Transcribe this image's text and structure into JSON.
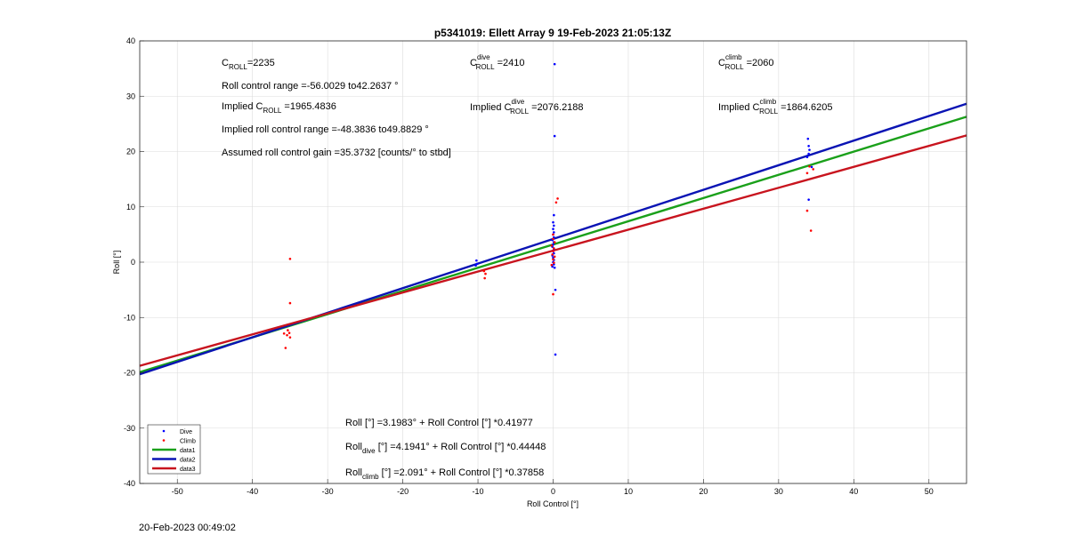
{
  "chart_data": {
    "type": "scatter",
    "title": "p5341019: Ellett Array 9 19-Feb-2023 21:05:13Z",
    "xlabel": "Roll Control [°]",
    "ylabel": "Roll [°]",
    "xlim": [
      -55,
      55
    ],
    "ylim": [
      -40,
      40
    ],
    "xticks": [
      "-50",
      "-40",
      "-30",
      "-20",
      "-10",
      "0",
      "10",
      "20",
      "30",
      "40",
      "50"
    ],
    "yticks": [
      "-40",
      "-30",
      "-20",
      "-10",
      "0",
      "10",
      "20",
      "30",
      "40"
    ],
    "grid": true,
    "legend_position": "bottom-left",
    "legend": [
      {
        "label": "Dive",
        "kind": "marker",
        "color": "#0000ff"
      },
      {
        "label": "Climb",
        "kind": "marker",
        "color": "#ff0000"
      },
      {
        "label": "data1",
        "kind": "line",
        "color": "#1aa01a"
      },
      {
        "label": "data2",
        "kind": "line",
        "color": "#0a14b4"
      },
      {
        "label": "data3",
        "kind": "line",
        "color": "#c8141e"
      }
    ],
    "lines": [
      {
        "name": "data1",
        "intercept": 3.1983,
        "slope": 0.41977,
        "color": "#1aa01a"
      },
      {
        "name": "data2",
        "intercept": 4.1941,
        "slope": 0.44448,
        "color": "#0a14b4"
      },
      {
        "name": "data3",
        "intercept": 2.091,
        "slope": 0.37858,
        "color": "#c8141e"
      }
    ],
    "series": [
      {
        "name": "Dive",
        "color": "#0000ff",
        "points": [
          [
            0.2,
            35.8
          ],
          [
            0.2,
            22.8
          ],
          [
            0.1,
            8.5
          ],
          [
            0.0,
            7.2
          ],
          [
            0.1,
            6.6
          ],
          [
            0.0,
            6.0
          ],
          [
            0.1,
            5.4
          ],
          [
            0.0,
            5.0
          ],
          [
            0.1,
            4.5
          ],
          [
            -0.1,
            4.0
          ],
          [
            0.1,
            3.6
          ],
          [
            0.0,
            3.2
          ],
          [
            -0.1,
            2.8
          ],
          [
            0.1,
            2.4
          ],
          [
            0.0,
            2.0
          ],
          [
            0.1,
            1.6
          ],
          [
            -0.1,
            1.2
          ],
          [
            0.0,
            0.8
          ],
          [
            0.1,
            0.4
          ],
          [
            0.0,
            0.0
          ],
          [
            0.1,
            -0.4
          ],
          [
            -0.1,
            -0.8
          ],
          [
            0.2,
            -1.0
          ],
          [
            0.3,
            -5.0
          ],
          [
            0.3,
            -16.7
          ],
          [
            -10.2,
            0.3
          ],
          [
            -10.1,
            -0.3
          ],
          [
            -10.3,
            -0.6
          ],
          [
            33.9,
            22.3
          ],
          [
            34.0,
            21.0
          ],
          [
            34.1,
            20.3
          ],
          [
            34.0,
            19.6
          ],
          [
            33.8,
            19.0
          ],
          [
            34.0,
            11.3
          ],
          [
            34.4,
            17.2
          ]
        ]
      },
      {
        "name": "Climb",
        "color": "#ff0000",
        "points": [
          [
            -35.0,
            0.6
          ],
          [
            -35.0,
            -7.4
          ],
          [
            -35.3,
            -12.3
          ],
          [
            -35.1,
            -12.8
          ],
          [
            -35.4,
            -13.2
          ],
          [
            -35.0,
            -13.6
          ],
          [
            -35.6,
            -15.5
          ],
          [
            -35.8,
            -12.9
          ],
          [
            -9.0,
            -2.1
          ],
          [
            -9.1,
            -2.9
          ],
          [
            -9.2,
            -1.6
          ],
          [
            0.6,
            11.5
          ],
          [
            0.4,
            10.8
          ],
          [
            0.0,
            4.2
          ],
          [
            0.2,
            3.6
          ],
          [
            -0.2,
            3.0
          ],
          [
            0.1,
            2.5
          ],
          [
            0.0,
            2.0
          ],
          [
            -0.1,
            1.4
          ],
          [
            0.2,
            1.0
          ],
          [
            0.0,
            0.5
          ],
          [
            0.1,
            -0.1
          ],
          [
            -0.2,
            -0.5
          ],
          [
            0.0,
            5.0
          ],
          [
            0.0,
            -5.8
          ],
          [
            33.8,
            16.1
          ],
          [
            33.8,
            9.3
          ],
          [
            34.3,
            5.7
          ],
          [
            34.6,
            16.8
          ],
          [
            34.1,
            17.3
          ]
        ]
      }
    ],
    "annotations": {
      "c_roll": {
        "base": "C",
        "sub": "ROLL",
        "value": "=2235"
      },
      "range": "Roll control range =-56.0029 to42.2637 °",
      "implied": {
        "pre": "Implied C",
        "sub": "ROLL",
        "value": " =1965.4836"
      },
      "implied_range": "Implied roll control range =-48.3836 to49.8829 °",
      "gain": "Assumed roll control gain =35.3732 [counts/° to stbd]",
      "c_dive": {
        "base": "C",
        "sup": "dive",
        "sub": "ROLL",
        "value": " =2410"
      },
      "implied_dive": {
        "pre": "Implied C",
        "sup": "dive",
        "sub": "ROLL",
        "value": " =2076.2188"
      },
      "c_climb": {
        "base": "C",
        "sup": "climb",
        "sub": "ROLL",
        "value": " =2060"
      },
      "implied_climb": {
        "pre": "Implied C",
        "sup": "climb",
        "sub": "ROLL",
        "value": " =1864.6205"
      },
      "eq1": "Roll [°] =3.1983° + Roll Control [°] *0.41977",
      "eq2": {
        "pre": "Roll",
        "sub": "dive",
        "rest": " [°] =4.1941° + Roll Control [°] *0.44448"
      },
      "eq3": {
        "pre": "Roll",
        "sub": "climb",
        "rest": " [°] =2.091° + Roll Control [°] *0.37858"
      }
    }
  },
  "footer_timestamp": "20-Feb-2023 00:49:02"
}
